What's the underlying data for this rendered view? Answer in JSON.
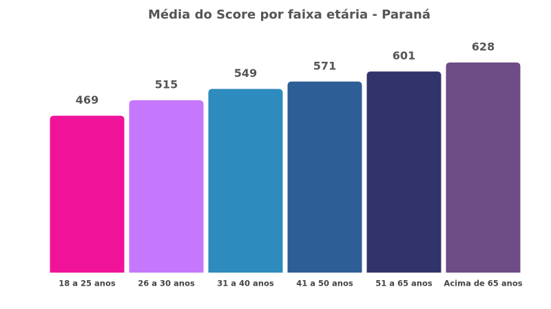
{
  "chart_data": {
    "type": "bar",
    "title": "Média do Score por faixa etária - Paraná",
    "categories": [
      "18 a 25 anos",
      "26 a 30 anos",
      "31 a 40 anos",
      "41 a 50 anos",
      "51 a 65 anos",
      "Acima de 65 anos"
    ],
    "values": [
      469,
      515,
      549,
      571,
      601,
      628
    ],
    "colors": [
      "#f0139a",
      "#c678fc",
      "#2e8bbd",
      "#2e5e96",
      "#31346b",
      "#6e4c86"
    ]
  }
}
